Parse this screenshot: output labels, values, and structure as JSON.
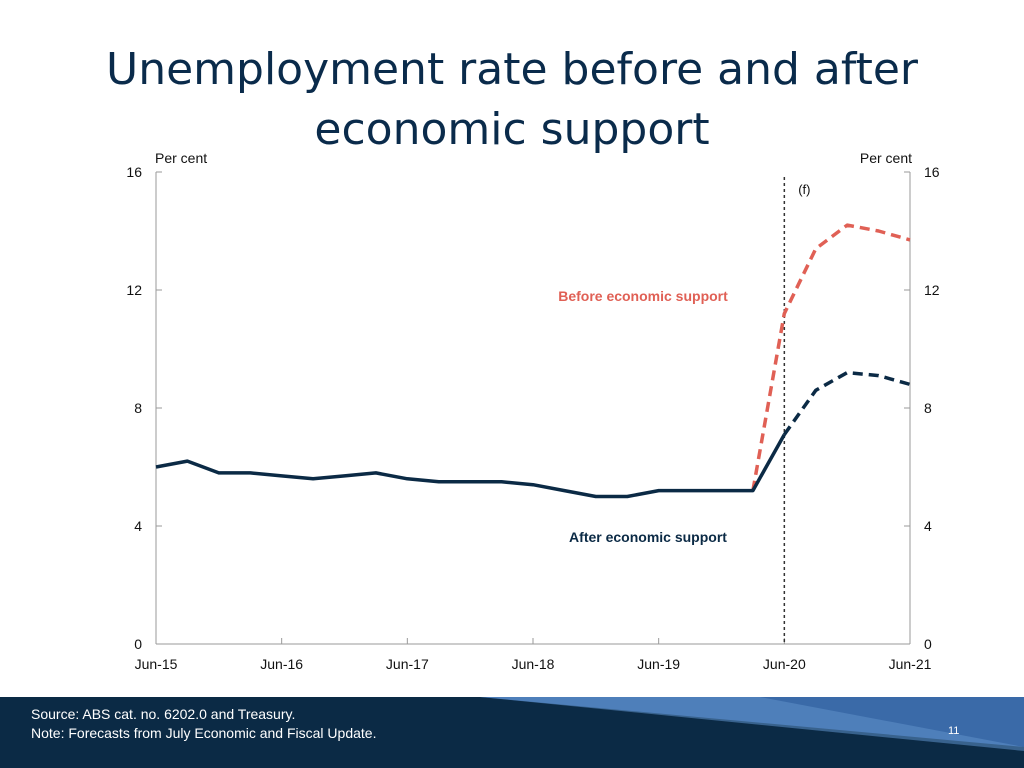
{
  "slide": {
    "title_line1": "Unemployment rate before and after",
    "title_line2": "economic support",
    "source": "Source: ABS cat. no. 6202.0 and Treasury.",
    "note": "Note: Forecasts from July Economic and Fiscal Update.",
    "page_number": "11"
  },
  "colors": {
    "title": "#0a2b4b",
    "after_series": "#0b2a45",
    "before_series": "#e06055",
    "footer": "#0b2a45",
    "footer_accent": "#3a6aa8"
  },
  "chart_data": {
    "type": "line",
    "left_axis_unit": "Per cent",
    "right_axis_unit": "Per cent",
    "ylim": [
      0,
      16
    ],
    "yticks": [
      0,
      4,
      8,
      12,
      16
    ],
    "x_range": [
      "Jun-15",
      "Jun-21"
    ],
    "x_ticks": [
      "Jun-15",
      "Jun-16",
      "Jun-17",
      "Jun-18",
      "Jun-19",
      "Jun-20",
      "Jun-21"
    ],
    "forecast_marker": {
      "x": "Jun-20",
      "label": "(f)"
    },
    "quarters": [
      "Jun-15",
      "Sep-15",
      "Dec-15",
      "Mar-16",
      "Jun-16",
      "Sep-16",
      "Dec-16",
      "Mar-17",
      "Jun-17",
      "Sep-17",
      "Dec-17",
      "Mar-18",
      "Jun-18",
      "Sep-18",
      "Dec-18",
      "Mar-19",
      "Jun-19",
      "Sep-19",
      "Dec-19",
      "Mar-20",
      "Jun-20",
      "Sep-20",
      "Dec-20",
      "Mar-21",
      "Jun-21"
    ],
    "series": [
      {
        "name": "After economic support",
        "style": "solid-then-dashed",
        "values": [
          6.0,
          6.2,
          5.8,
          5.8,
          5.7,
          5.6,
          5.7,
          5.8,
          5.6,
          5.5,
          5.5,
          5.5,
          5.4,
          5.2,
          5.0,
          5.0,
          5.2,
          5.2,
          5.2,
          5.2,
          7.1,
          8.6,
          9.2,
          9.1,
          8.8
        ]
      },
      {
        "name": "Before economic support",
        "style": "dashed",
        "values": [
          null,
          null,
          null,
          null,
          null,
          null,
          null,
          null,
          null,
          null,
          null,
          null,
          null,
          null,
          null,
          null,
          null,
          null,
          null,
          5.2,
          11.2,
          13.4,
          14.2,
          14.0,
          13.7
        ]
      }
    ]
  }
}
